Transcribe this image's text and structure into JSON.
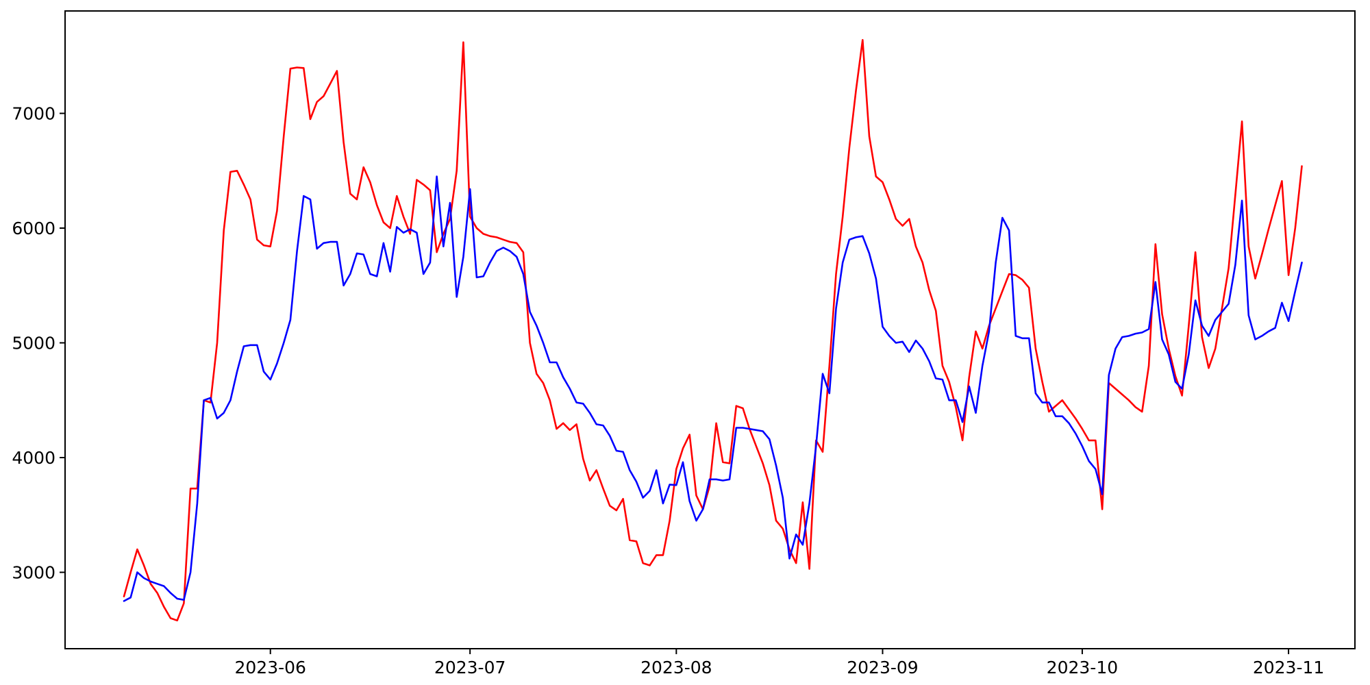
{
  "figure": {
    "background_color": "#ffffff",
    "frame_color": "#000000",
    "tick_color": "#000000",
    "label_color": "#000000"
  },
  "chart_data": {
    "type": "line",
    "title": "",
    "xlabel": "",
    "ylabel": "",
    "grid": false,
    "legend_position": "none",
    "x_start_date": "2023-05-10",
    "x_frequency": "daily",
    "x_tick_labels": [
      "2023-06",
      "2023-07",
      "2023-08",
      "2023-09",
      "2023-10",
      "2023-11"
    ],
    "y_tick_labels": [
      "3000",
      "4000",
      "5000",
      "6000",
      "7000"
    ],
    "y_tick_values": [
      3000,
      4000,
      5000,
      6000,
      7000
    ],
    "ylim": [
      2330,
      7890
    ],
    "series": [
      {
        "name": "red-series",
        "color": "#ff0000",
        "values": [
          2790,
          3000,
          3200,
          3060,
          2900,
          2820,
          2700,
          2600,
          2580,
          2730,
          3730,
          3730,
          4500,
          4480,
          5000,
          5980,
          6490,
          6500,
          6380,
          6250,
          5900,
          5850,
          5840,
          6150,
          6800,
          7390,
          7400,
          7395,
          6950,
          7100,
          7150,
          7260,
          7370,
          6750,
          6300,
          6250,
          6530,
          6400,
          6200,
          6050,
          6000,
          6280,
          6100,
          5950,
          6420,
          6380,
          6330,
          5790,
          5950,
          6080,
          6500,
          7620,
          6100,
          6000,
          5950,
          5930,
          5920,
          5900,
          5880,
          5870,
          5790,
          5000,
          4730,
          4650,
          4500,
          4250,
          4300,
          4240,
          4290,
          3990,
          3800,
          3890,
          3730,
          3580,
          3540,
          3640,
          3280,
          3270,
          3080,
          3060,
          3150,
          3150,
          3450,
          3900,
          4080,
          4200,
          3670,
          3550,
          3750,
          4300,
          3960,
          3950,
          4450,
          4430,
          4250,
          4100,
          3950,
          3760,
          3450,
          3380,
          3200,
          3080,
          3610,
          3030,
          4150,
          4050,
          4800,
          5600,
          6100,
          6700,
          7200,
          7640,
          6800,
          6450,
          6400,
          6250,
          6080,
          6020,
          6080,
          5840,
          5700,
          5460,
          5280,
          4800,
          4660,
          4440,
          4150,
          4700,
          5100,
          4950,
          5150,
          5300,
          5450,
          5600,
          5590,
          5550,
          5480,
          4950,
          4660,
          4400,
          4450,
          4500,
          4420,
          4340,
          4250,
          4150,
          4150,
          3550,
          4650,
          4600,
          4550,
          4500,
          4440,
          4400,
          4800,
          5860,
          5250,
          4950,
          4710,
          4540,
          5150,
          5790,
          5050,
          4780,
          4950,
          5300,
          5650,
          6290,
          6930,
          5840,
          5560,
          5770,
          5990,
          6200,
          6410,
          5590,
          6000,
          6540
        ]
      },
      {
        "name": "blue-series",
        "color": "#0000ff",
        "values": [
          2750,
          2780,
          3000,
          2950,
          2920,
          2900,
          2880,
          2820,
          2770,
          2760,
          3000,
          3600,
          4500,
          4520,
          4340,
          4390,
          4500,
          4750,
          4970,
          4980,
          4980,
          4750,
          4680,
          4820,
          5000,
          5200,
          5800,
          6280,
          6250,
          5820,
          5870,
          5880,
          5880,
          5500,
          5600,
          5780,
          5770,
          5600,
          5580,
          5870,
          5620,
          6010,
          5960,
          5990,
          5960,
          5600,
          5700,
          6450,
          5840,
          6220,
          5400,
          5750,
          6340,
          5570,
          5580,
          5700,
          5800,
          5830,
          5800,
          5750,
          5600,
          5270,
          5150,
          5000,
          4830,
          4830,
          4700,
          4600,
          4480,
          4470,
          4390,
          4290,
          4280,
          4190,
          4060,
          4050,
          3890,
          3790,
          3650,
          3710,
          3890,
          3600,
          3765,
          3760,
          3960,
          3620,
          3450,
          3550,
          3810,
          3810,
          3800,
          3810,
          4260,
          4260,
          4250,
          4240,
          4230,
          4160,
          3930,
          3650,
          3120,
          3330,
          3240,
          3600,
          4100,
          4730,
          4560,
          5300,
          5700,
          5900,
          5920,
          5930,
          5780,
          5560,
          5140,
          5060,
          5000,
          5010,
          4920,
          5020,
          4950,
          4840,
          4690,
          4680,
          4500,
          4500,
          4310,
          4620,
          4390,
          4800,
          5100,
          5700,
          6090,
          5980,
          5060,
          5040,
          5040,
          4560,
          4480,
          4480,
          4360,
          4360,
          4300,
          4210,
          4100,
          3970,
          3900,
          3680,
          4720,
          4950,
          5050,
          5060,
          5080,
          5090,
          5120,
          5530,
          5030,
          4900,
          4660,
          4600,
          4900,
          5370,
          5150,
          5060,
          5200,
          5270,
          5340,
          5680,
          6240,
          5240,
          5030,
          5060,
          5100,
          5130,
          5350,
          5190,
          5450,
          5700
        ]
      }
    ]
  }
}
